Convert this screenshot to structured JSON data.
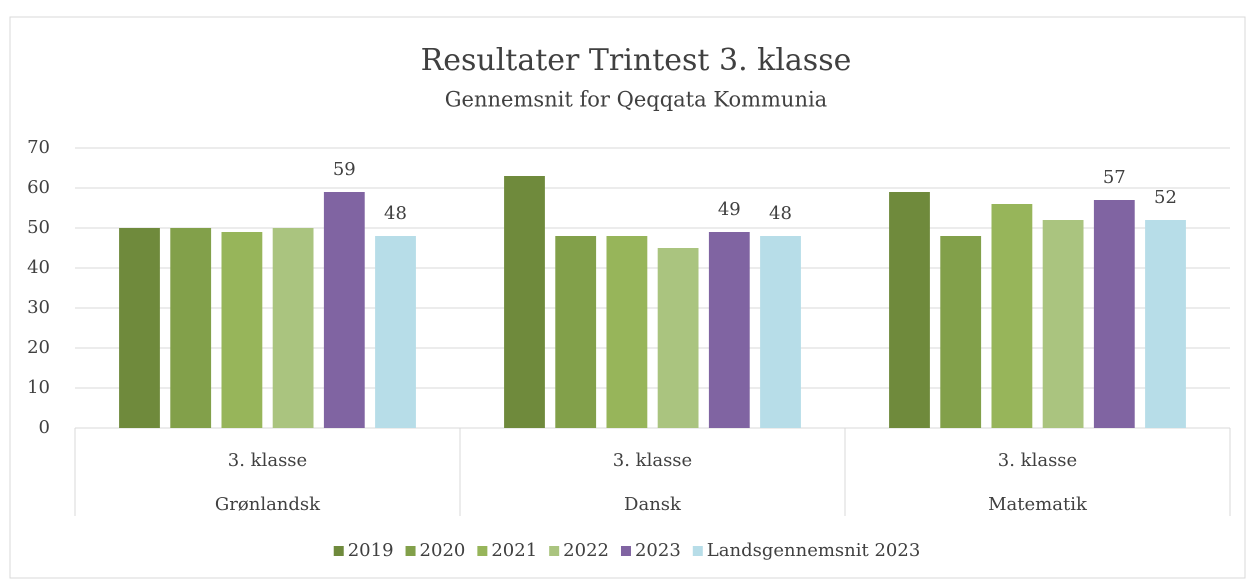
{
  "chart_data": {
    "type": "bar",
    "title": "Resultater Trintest 3. klasse",
    "subtitle": "Gennemsnit for Qeqqata Kommunia",
    "categories": [
      "3. klasse",
      "3. klasse",
      "3. klasse"
    ],
    "groups": [
      "Grønlandsk",
      "Dansk",
      "Matematik"
    ],
    "series": [
      {
        "name": "2019",
        "color": "#6f8a3c",
        "values": [
          50,
          63,
          59
        ],
        "data_labels": false
      },
      {
        "name": "2020",
        "color": "#82a04a",
        "values": [
          50,
          48,
          48
        ],
        "data_labels": false
      },
      {
        "name": "2021",
        "color": "#97b55a",
        "values": [
          49,
          48,
          56
        ],
        "data_labels": false
      },
      {
        "name": "2022",
        "color": "#aac47f",
        "values": [
          50,
          45,
          52
        ],
        "data_labels": false
      },
      {
        "name": "2023",
        "color": "#8064a2",
        "values": [
          59,
          49,
          57
        ],
        "data_labels": true
      },
      {
        "name": "Landsgennemsnit 2023",
        "color": "#b7dde8",
        "values": [
          48,
          48,
          52
        ],
        "data_labels": true
      }
    ],
    "ylim": [
      0,
      70
    ],
    "yticks": [
      0,
      10,
      20,
      30,
      40,
      50,
      60,
      70
    ],
    "grid": true,
    "legend": "bottom"
  }
}
